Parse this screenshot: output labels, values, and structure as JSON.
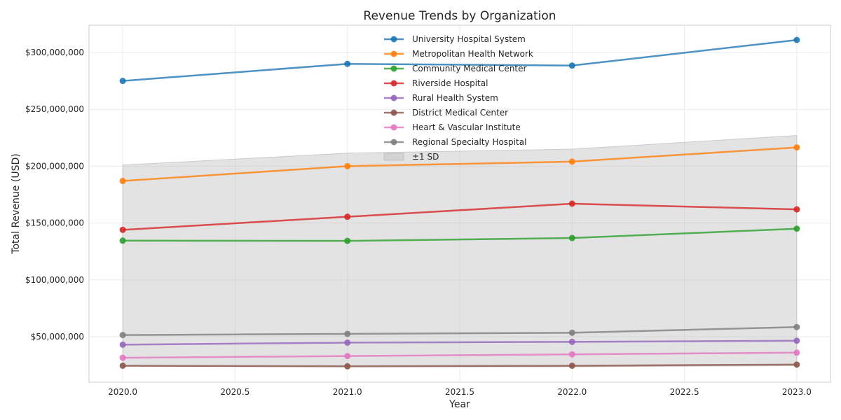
{
  "chart_data": {
    "type": "line",
    "title": "Revenue Trends by Organization",
    "xlabel": "Year",
    "ylabel": "Total Revenue (USD)",
    "x": [
      2020,
      2021,
      2022,
      2023
    ],
    "xlim": [
      2019.85,
      2023.15
    ],
    "ylim": [
      10000000,
      324000000
    ],
    "x_ticks": [
      2020.0,
      2020.5,
      2021.0,
      2021.5,
      2022.0,
      2022.5,
      2023.0
    ],
    "x_tick_labels": [
      "2020.0",
      "2020.5",
      "2021.0",
      "2021.5",
      "2022.0",
      "2022.5",
      "2023.0"
    ],
    "y_ticks": [
      50000000,
      100000000,
      150000000,
      200000000,
      250000000,
      300000000
    ],
    "y_tick_labels": [
      "$50,000,000",
      "$100,000,000",
      "$150,000,000",
      "$200,000,000",
      "$250,000,000",
      "$300,000,000"
    ],
    "grid": true,
    "legend_position": "top-center",
    "series": [
      {
        "name": "University Hospital System",
        "color": "#1f77b4",
        "values": [
          275000000,
          290000000,
          288500000,
          311000000
        ]
      },
      {
        "name": "Metropolitan Health Network",
        "color": "#ff7f0e",
        "values": [
          187000000,
          200000000,
          204000000,
          216500000
        ]
      },
      {
        "name": "Community Medical Center",
        "color": "#2ca02c",
        "values": [
          134500000,
          134300000,
          136800000,
          145000000
        ]
      },
      {
        "name": "Riverside Hospital",
        "color": "#d62728",
        "values": [
          144000000,
          155500000,
          167000000,
          162000000
        ]
      },
      {
        "name": "Rural Health System",
        "color": "#9467bd",
        "values": [
          43000000,
          44800000,
          45500000,
          46500000
        ]
      },
      {
        "name": "District Medical Center",
        "color": "#8c564b",
        "values": [
          24500000,
          24000000,
          24500000,
          25500000
        ]
      },
      {
        "name": "Heart & Vascular Institute",
        "color": "#e377c2",
        "values": [
          31500000,
          33000000,
          34500000,
          36000000
        ]
      },
      {
        "name": "Regional Specialty Hospital",
        "color": "#7f7f7f",
        "values": [
          51500000,
          52500000,
          53500000,
          58500000
        ]
      }
    ],
    "band": {
      "name": "±1 SD",
      "color": "#bdbdbd",
      "lower": [
        24000000,
        23500000,
        23500000,
        24500000
      ],
      "upper": [
        201000000,
        211500000,
        215000000,
        227000000
      ]
    }
  }
}
